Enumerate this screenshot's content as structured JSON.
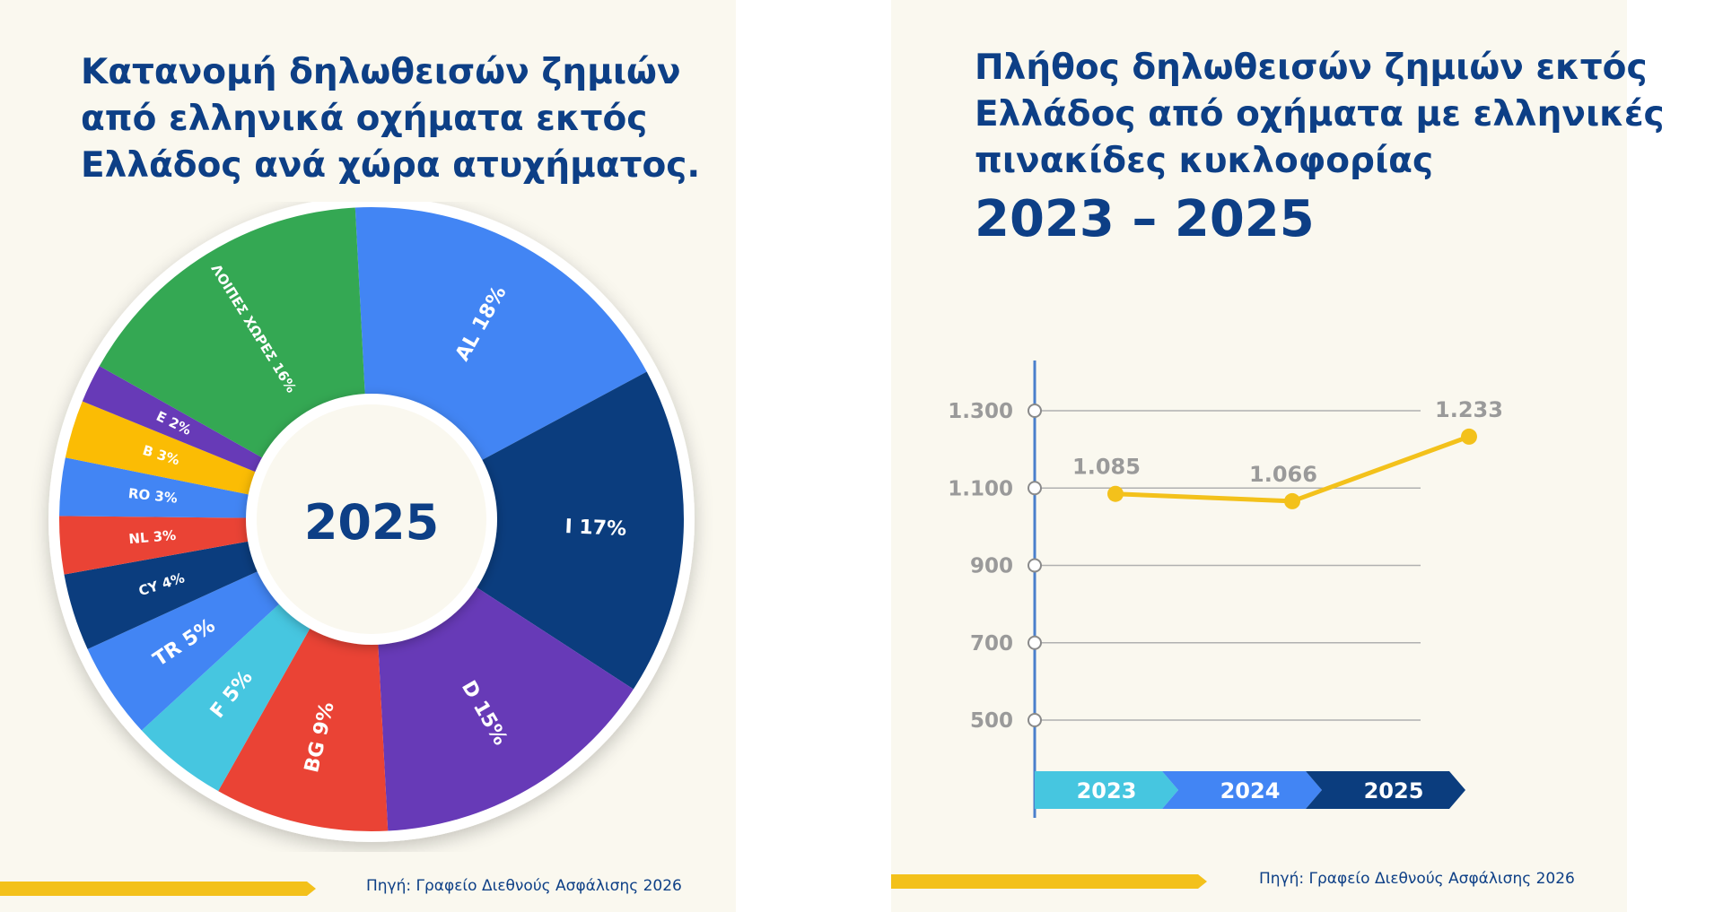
{
  "left": {
    "title_lines": [
      "Κατανομή δηλωθεισών ζημιών",
      "από ελληνικά οχήματα εκτός",
      "Ελλάδος ανά χώρα ατυχήματος."
    ],
    "source": "Πηγή: Γραφείο Διεθνούς Ασφάλισης 2026",
    "bar_color": "#f3c11b"
  },
  "right": {
    "title_lines": [
      "Πλήθος δηλωθεισών ζημιών εκτός",
      "Ελλάδος από οχήματα με ελληνικές",
      "πινακίδες κυκλοφορίας"
    ],
    "years": "2023 – 2025",
    "source": "Πηγή: Γραφείο Διεθνούς Ασφάλισης 2026",
    "bar_color": "#f3c11b"
  },
  "chart_data": [
    {
      "type": "pie",
      "center_label": "2025",
      "slices": [
        {
          "label": "AL 18%",
          "value": 18,
          "color": "#4285f4"
        },
        {
          "label": "I 17%",
          "value": 17,
          "color": "#0b3d7e"
        },
        {
          "label": "D 15%",
          "value": 15,
          "color": "#673ab7"
        },
        {
          "label": "BG 9%",
          "value": 9,
          "color": "#ea4335"
        },
        {
          "label": "F 5%",
          "value": 5,
          "color": "#46c6e0"
        },
        {
          "label": "TR 5%",
          "value": 5,
          "color": "#4285f4"
        },
        {
          "label": "CY 4%",
          "value": 4,
          "color": "#0b3d7e"
        },
        {
          "label": "NL 3%",
          "value": 3,
          "color": "#ea4335"
        },
        {
          "label": "RO 3%",
          "value": 3,
          "color": "#4285f4"
        },
        {
          "label": "B 3%",
          "value": 3,
          "color": "#fbbc04"
        },
        {
          "label": "E 2%",
          "value": 2,
          "color": "#673ab7"
        },
        {
          "label": "ΛΟΙΠΕΣ ΧΩΡΕΣ 16%",
          "value": 16,
          "color": "#34a853"
        }
      ]
    },
    {
      "type": "line",
      "categories": [
        "2023",
        "2024",
        "2025"
      ],
      "series": [
        {
          "values": [
            1085,
            1066,
            1233
          ],
          "color": "#f3c11b"
        }
      ],
      "data_labels": [
        "1.085",
        "1.066",
        "1.233"
      ],
      "yticks": [
        500,
        700,
        900,
        1100,
        1300
      ],
      "ytick_labels": [
        "500",
        "700",
        "900",
        "1.100",
        "1.300"
      ],
      "category_colors": [
        "#46c6e0",
        "#4285f4",
        "#0b3d7e"
      ],
      "grid": true
    }
  ]
}
